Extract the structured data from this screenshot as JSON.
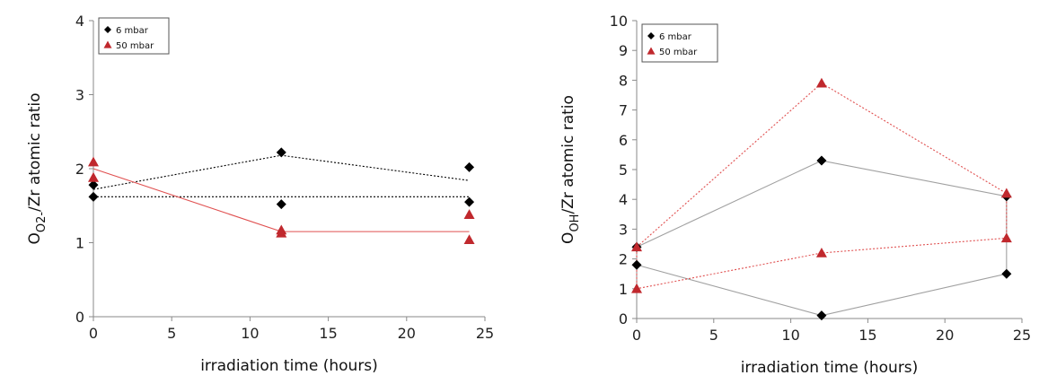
{
  "chart_data": [
    {
      "type": "scatter",
      "xlabel": "irradiation time (hours)",
      "ylabel_main": "O",
      "ylabel_sub": "O2-",
      "ylabel_rest": "/Zr atomic ratio",
      "xlim": [
        0,
        25
      ],
      "ylim": [
        0,
        4
      ],
      "xticks": [
        "0",
        "5",
        "10",
        "15",
        "20",
        "25"
      ],
      "yticks": [
        "0",
        "1",
        "2",
        "3",
        "4"
      ],
      "grid": false,
      "legend_position": "top-left",
      "series": [
        {
          "name": "6 mbar",
          "marker": "diamond",
          "color": "#000000",
          "x": [
            0,
            0,
            12,
            12,
            24,
            24
          ],
          "y": [
            1.62,
            1.78,
            2.22,
            1.52,
            2.02,
            1.55
          ]
        },
        {
          "name": "50 mbar",
          "marker": "triangle",
          "color": "#c0282d",
          "x": [
            0,
            0,
            12,
            12,
            24,
            24
          ],
          "y": [
            2.09,
            1.88,
            1.17,
            1.13,
            1.38,
            1.04
          ]
        }
      ],
      "lines": [
        {
          "color": "#000000",
          "dash": true,
          "x": [
            0,
            24
          ],
          "y": [
            1.62,
            1.62
          ]
        },
        {
          "color": "#000000",
          "dash": true,
          "x": [
            0,
            12,
            24
          ],
          "y": [
            1.72,
            2.18,
            1.84
          ]
        },
        {
          "color": "#e05050",
          "dash": false,
          "x": [
            0,
            12,
            24
          ],
          "y": [
            2.0,
            1.15,
            1.15
          ]
        }
      ]
    },
    {
      "type": "scatter",
      "xlabel": "irradiation time (hours)",
      "ylabel_main": "O",
      "ylabel_sub": "OH",
      "ylabel_rest": "/Zr atomic ratio",
      "xlim": [
        0,
        25
      ],
      "ylim": [
        0,
        10
      ],
      "xticks": [
        "0",
        "5",
        "10",
        "15",
        "20",
        "25"
      ],
      "yticks": [
        "0",
        "1",
        "2",
        "3",
        "4",
        "5",
        "6",
        "7",
        "8",
        "9",
        "10"
      ],
      "grid": false,
      "legend_position": "top-left",
      "series": [
        {
          "name": "6 mbar",
          "marker": "diamond",
          "color": "#000000",
          "x": [
            0,
            0,
            12,
            12,
            24,
            24
          ],
          "y": [
            2.4,
            1.8,
            5.3,
            0.1,
            4.1,
            1.5
          ]
        },
        {
          "name": "50 mbar",
          "marker": "triangle",
          "color": "#c0282d",
          "x": [
            0,
            0,
            12,
            12,
            24,
            24
          ],
          "y": [
            2.4,
            1.0,
            7.9,
            2.2,
            4.2,
            2.7
          ]
        }
      ],
      "lines": [
        {
          "color": "#a0a0a0",
          "dash": false,
          "x": [
            0,
            12,
            24,
            24,
            12,
            0,
            0
          ],
          "y": [
            2.4,
            5.3,
            4.1,
            1.5,
            0.1,
            1.8,
            2.4
          ]
        },
        {
          "color": "#e05050",
          "dash": true,
          "x": [
            0,
            12,
            24,
            24,
            12,
            0,
            0
          ],
          "y": [
            2.4,
            7.9,
            4.2,
            2.7,
            2.2,
            1.0,
            2.4
          ]
        }
      ]
    }
  ]
}
